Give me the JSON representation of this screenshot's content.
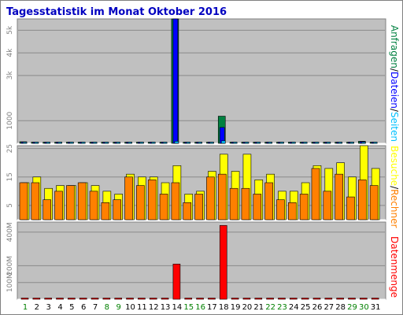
{
  "chart_data": {
    "type": "bar",
    "title": "Tagesstatistik im Monat Oktober 2016",
    "categories": [
      "1",
      "2",
      "3",
      "4",
      "5",
      "6",
      "7",
      "8",
      "9",
      "10",
      "11",
      "12",
      "13",
      "14",
      "15",
      "16",
      "17",
      "18",
      "19",
      "20",
      "21",
      "22",
      "23",
      "24",
      "25",
      "26",
      "27",
      "28",
      "29",
      "30",
      "31"
    ],
    "weekend_days": [
      "1",
      "8",
      "9",
      "15",
      "16",
      "22",
      "23",
      "29",
      "30"
    ],
    "colors": {
      "background": "#ffffff",
      "plot": "#c0c0c0",
      "title": "#0000c0",
      "anfragen": "#008040",
      "dateien": "#0000ff",
      "seiten": "#00c0ff",
      "besuche": "#ffff00",
      "rechner": "#ff8000",
      "datenmenge": "#ff0000",
      "weekend_label": "#008000",
      "weekday_label": "#000000"
    },
    "panels": [
      {
        "name": "top",
        "ylim": [
          0,
          5500
        ],
        "yticks": [
          {
            "value": 1000,
            "label": "1000"
          },
          {
            "value": 3000,
            "label": "3k"
          },
          {
            "value": 4000,
            "label": "4k"
          },
          {
            "value": 5000,
            "label": "5k"
          }
        ],
        "legend": [
          {
            "text": "Anfragen",
            "color": "#008040"
          },
          {
            "text": "/",
            "color": "#000000"
          },
          {
            "text": "Dateien",
            "color": "#0000ff"
          },
          {
            "text": "/",
            "color": "#000000"
          },
          {
            "text": "Seiten",
            "color": "#00c0ff"
          }
        ],
        "series": [
          {
            "name": "Anfragen",
            "color": "#008040",
            "values": [
              70,
              20,
              20,
              20,
              30,
              30,
              10,
              10,
              10,
              20,
              20,
              10,
              50,
              5520,
              10,
              10,
              30,
              1200,
              30,
              40,
              20,
              20,
              20,
              30,
              30,
              30,
              30,
              30,
              30,
              90,
              40
            ]
          },
          {
            "name": "Dateien",
            "color": "#0000ff",
            "values": [
              60,
              15,
              15,
              15,
              25,
              25,
              8,
              8,
              8,
              15,
              15,
              8,
              40,
              5520,
              8,
              8,
              25,
              700,
              25,
              35,
              15,
              15,
              15,
              25,
              25,
              25,
              25,
              25,
              25,
              80,
              35
            ]
          },
          {
            "name": "Seiten",
            "color": "#00c0ff",
            "values": [
              30,
              10,
              10,
              10,
              15,
              15,
              5,
              5,
              5,
              10,
              10,
              5,
              20,
              90,
              5,
              5,
              15,
              110,
              15,
              20,
              10,
              10,
              10,
              15,
              15,
              15,
              15,
              15,
              15,
              30,
              20
            ]
          }
        ]
      },
      {
        "name": "middle",
        "ylim": [
          0,
          26
        ],
        "yticks": [
          {
            "value": 5,
            "label": "5"
          },
          {
            "value": 15,
            "label": "15"
          },
          {
            "value": 25,
            "label": "25"
          }
        ],
        "legend": [
          {
            "text": "Besuche",
            "color": "#ffff00"
          },
          {
            "text": "/",
            "color": "#000000"
          },
          {
            "text": "Rechner",
            "color": "#ff8000"
          }
        ],
        "series": [
          {
            "name": "Besuche",
            "color": "#ffff00",
            "values": [
              13,
              15,
              11,
              12,
              12,
              13,
              12,
              10,
              9,
              16,
              15,
              15,
              13,
              19,
              9,
              10,
              17,
              23,
              17,
              23,
              14,
              16,
              10,
              10,
              13,
              19,
              18,
              20,
              15,
              26,
              18
            ]
          },
          {
            "name": "Rechner",
            "color": "#ff8000",
            "values": [
              13,
              13,
              7,
              10,
              12,
              13,
              10,
              6,
              7,
              15,
              12,
              14,
              9,
              13,
              6,
              9,
              15,
              16,
              11,
              11,
              9,
              13,
              7,
              6,
              9,
              18,
              10,
              16,
              8,
              14,
              12
            ]
          }
        ]
      },
      {
        "name": "bottom",
        "ylim": [
          0,
          460
        ],
        "yticks": [
          {
            "value": 100,
            "label": "100M"
          },
          {
            "value": 200,
            "label": "200M"
          },
          {
            "value": 400,
            "label": "400M"
          }
        ],
        "legend": [
          {
            "text": "Datenmenge",
            "color": "#ff0000"
          }
        ],
        "series": [
          {
            "name": "Datenmenge",
            "color": "#ff0000",
            "values": [
              3,
              3,
              3,
              3,
              3,
              3,
              3,
              3,
              3,
              3,
              3,
              3,
              3,
              210,
              3,
              3,
              3,
              440,
              3,
              3,
              3,
              3,
              3,
              3,
              3,
              3,
              3,
              3,
              3,
              3,
              3
            ]
          }
        ]
      }
    ]
  }
}
